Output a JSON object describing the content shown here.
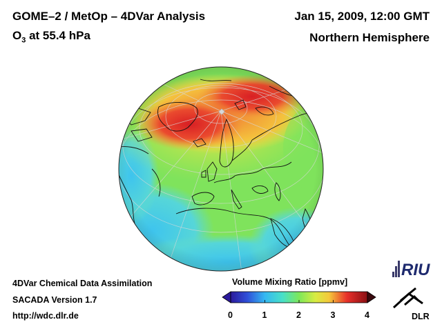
{
  "header": {
    "title": "GOME–2 / MetOp – 4DVar Analysis",
    "species_main": "O",
    "species_sub": "3",
    "species_rest": " at 55.4 hPa",
    "date": "Jan 15, 2009, 12:00 GMT",
    "region": "Northern Hemisphere"
  },
  "footer": {
    "line1": "4DVar Chemical Data Assimilation",
    "line2": "SACADA Version 1.7",
    "line3": "http://wdc.dlr.de"
  },
  "colorbar": {
    "title": "Volume Mixing Ratio [ppmv]",
    "ticks": [
      "0",
      "1",
      "2",
      "3",
      "4"
    ],
    "range": [
      0,
      4
    ]
  },
  "logos": {
    "riu": "RIU",
    "dlr": "DLR"
  },
  "colors": {
    "low": "#2b1a9c",
    "mid_low": "#35c0f0",
    "mid": "#7de85a",
    "mid_high": "#f5e33b",
    "high": "#e8302a",
    "max": "#8a0f14"
  }
}
